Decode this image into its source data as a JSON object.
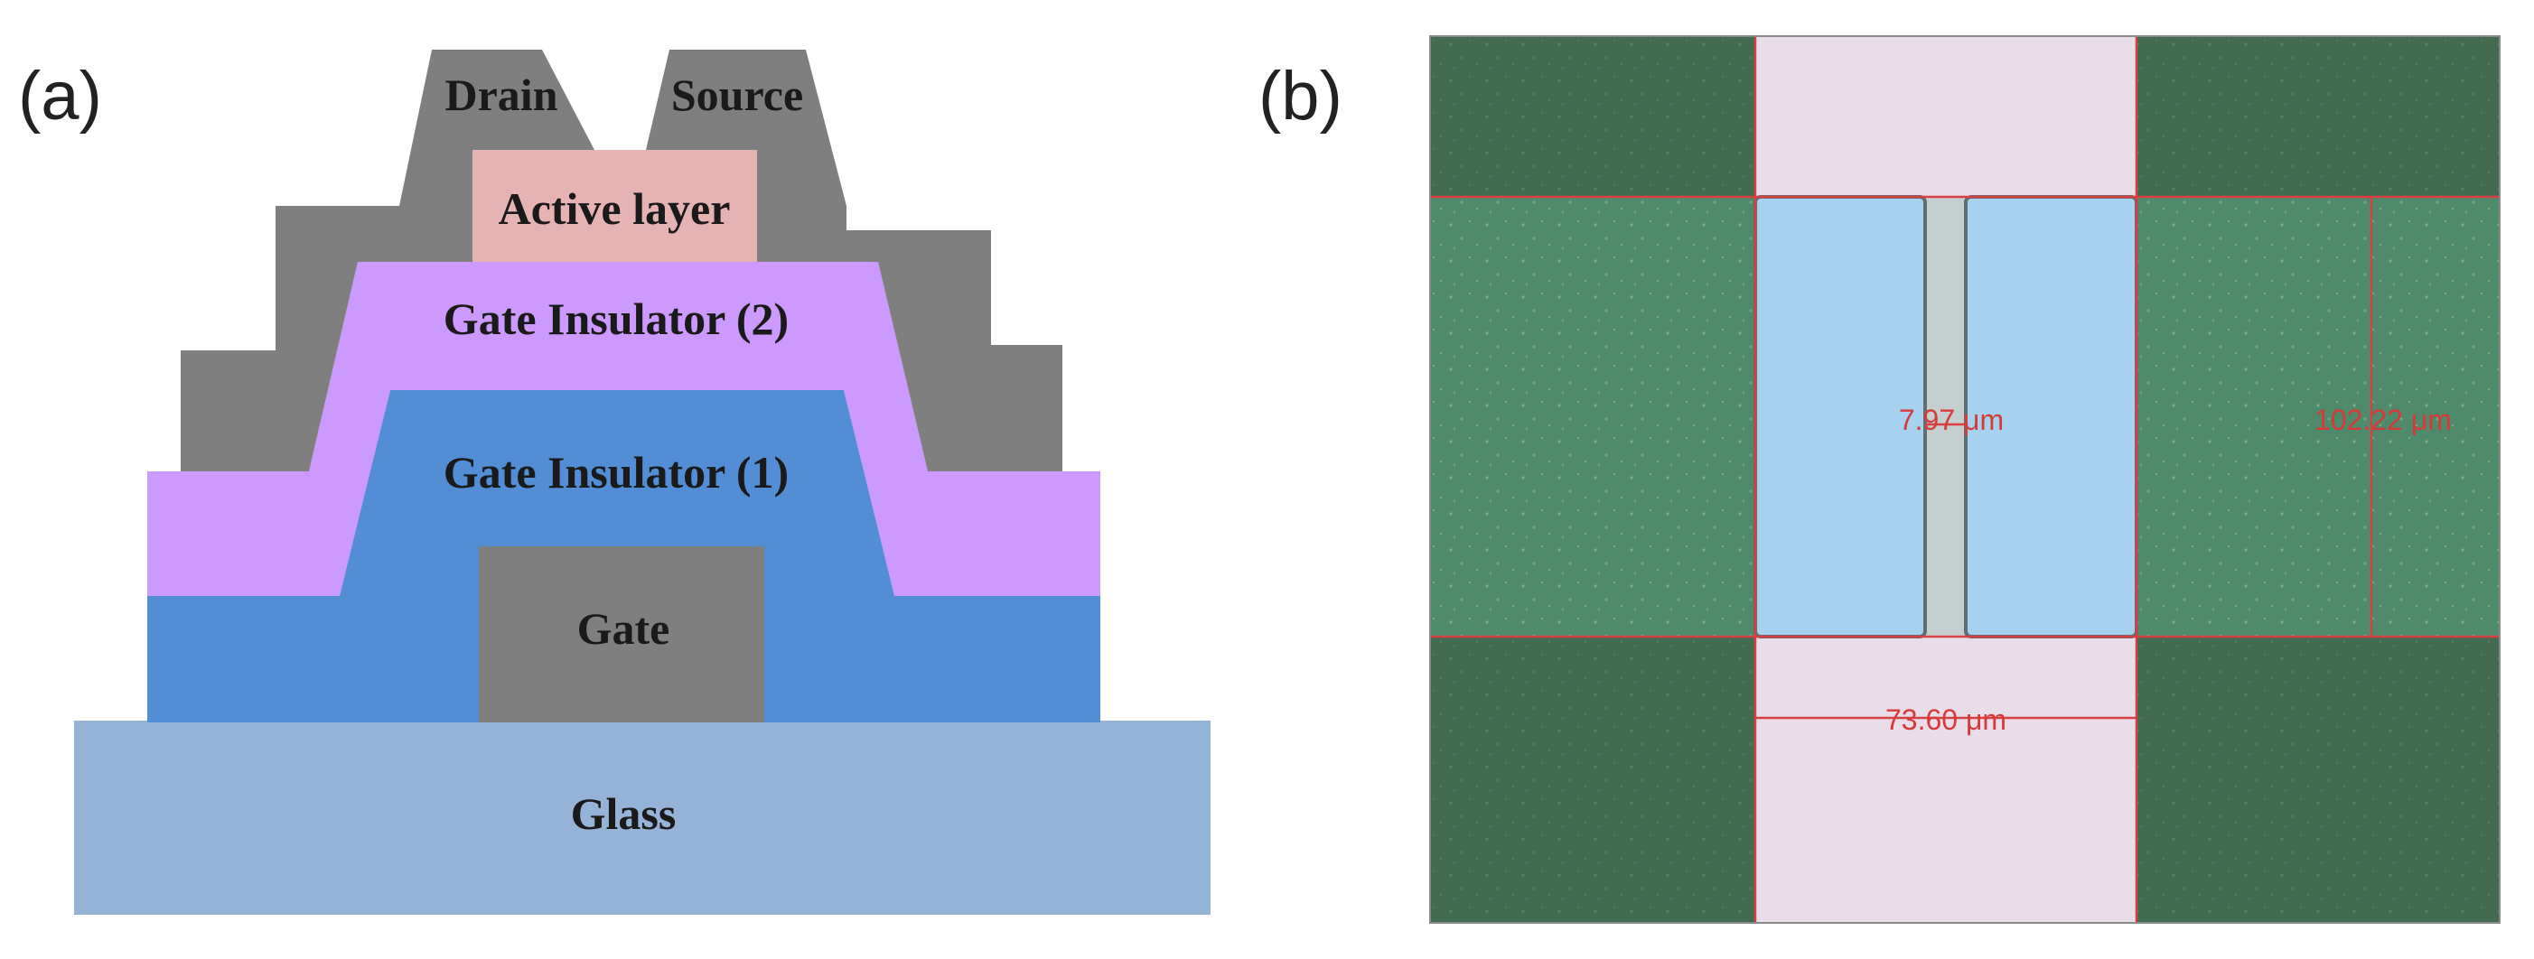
{
  "panel_a": {
    "label": "(a)",
    "layers": {
      "drain": "Drain",
      "source": "Source",
      "active": "Active layer",
      "gi2": "Gate Insulator (2)",
      "gi1": "Gate Insulator (1)",
      "gate": "Gate",
      "glass": "Glass"
    },
    "colors": {
      "electrode": "#7f7f7f",
      "active": "#e6b3b3",
      "gi2": "#cc99ff",
      "gi1": "#538dd5",
      "glass": "#95b3d7"
    }
  },
  "panel_b": {
    "label": "(b)",
    "measurements": {
      "channel_length": "7.97 μm",
      "channel_width": "102.22 μm",
      "electrode_span": "73.60 μm"
    },
    "colors": {
      "electrode_green": "#436b50",
      "channel_pad_green": "#4f8a6a",
      "pad_blue": "#a6d2f0",
      "substrate": "#e9dde9",
      "measure_line": "#d84040"
    }
  }
}
